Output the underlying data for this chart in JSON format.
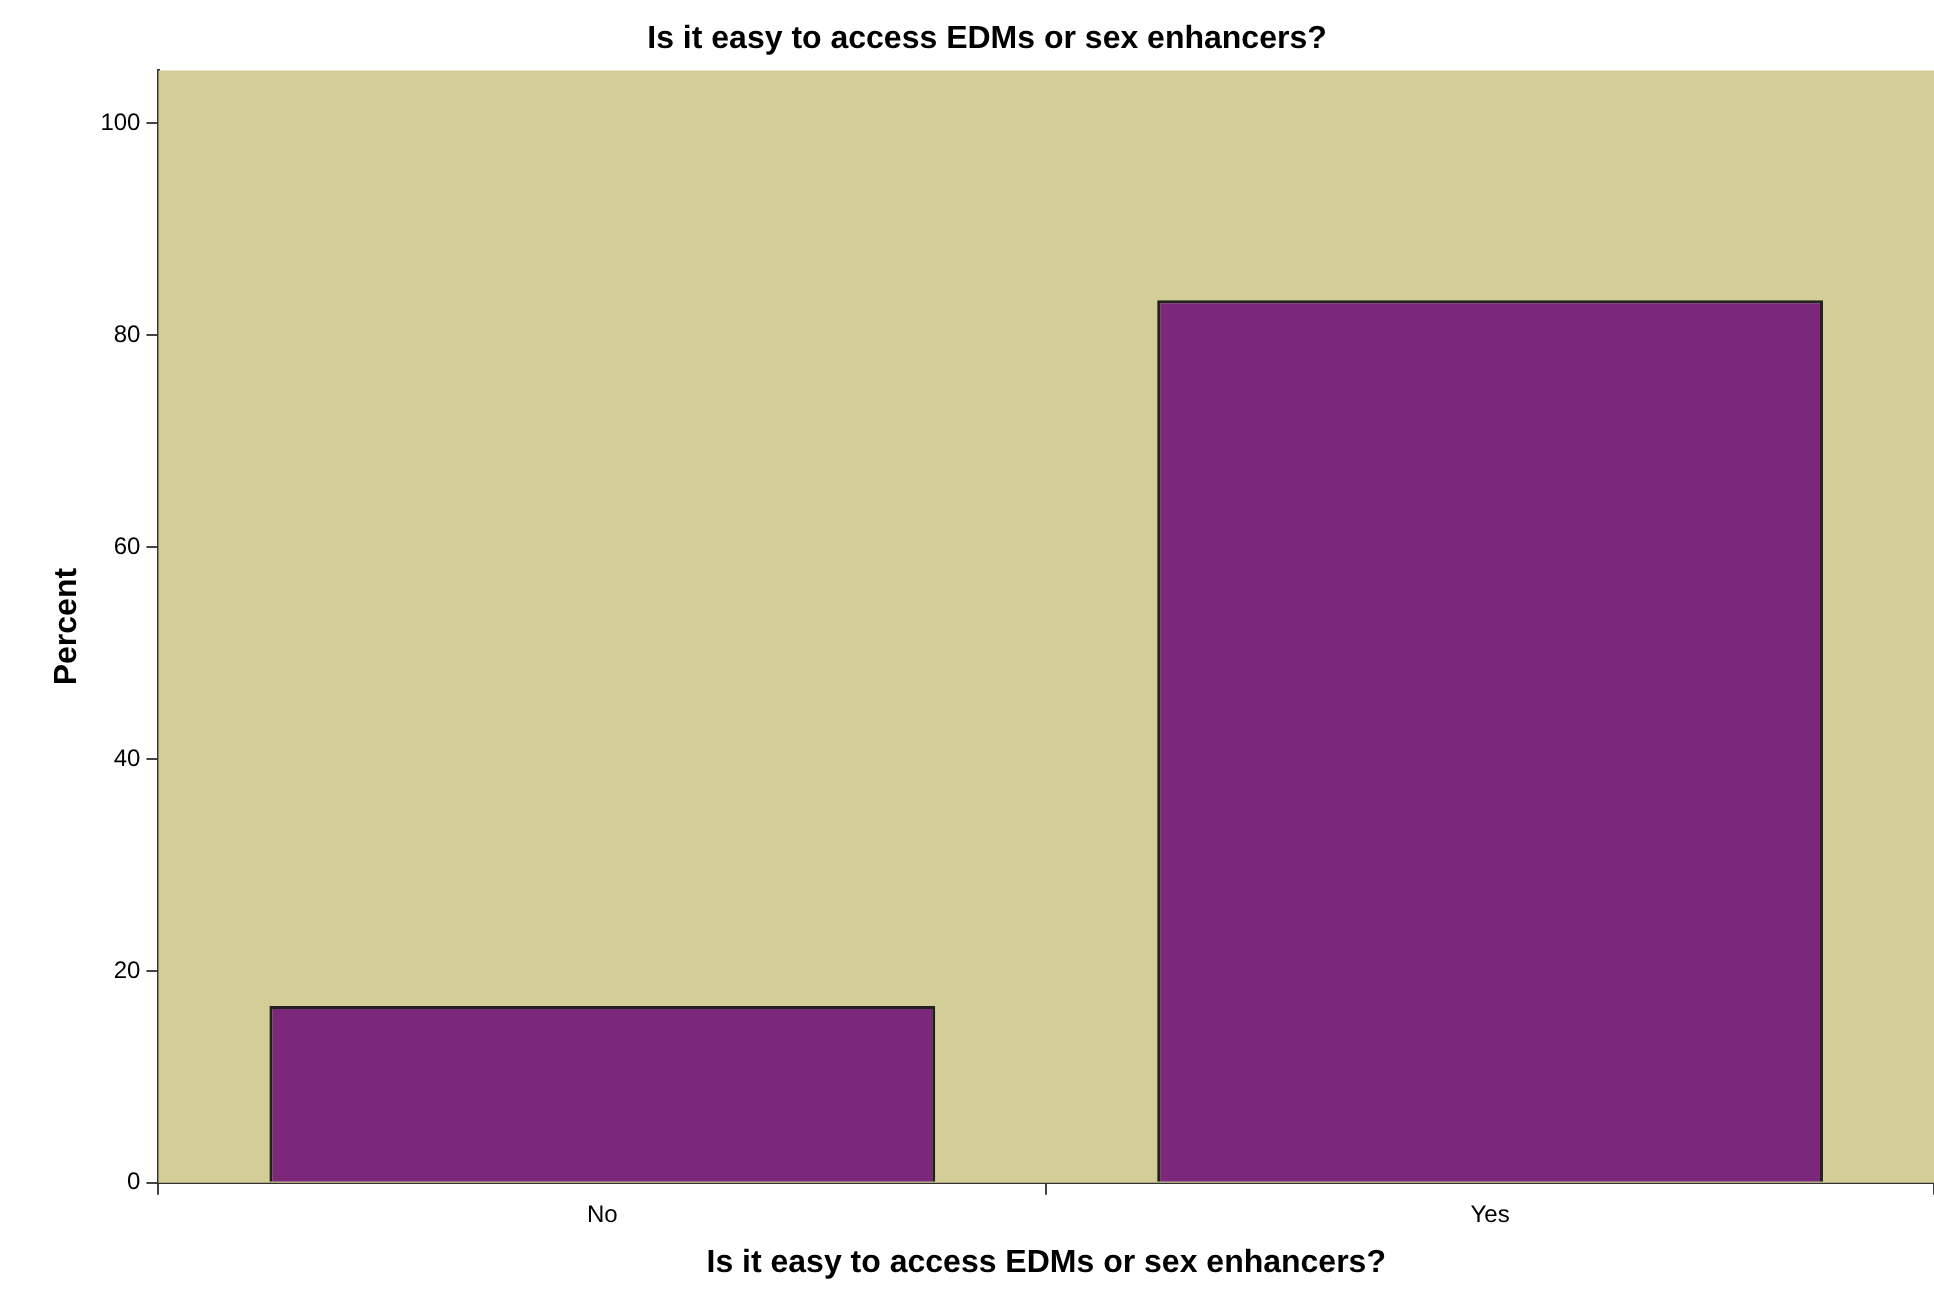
{
  "chart_data": {
    "type": "bar",
    "title": "Is it easy to access EDMs or sex enhancers?",
    "xlabel": "Is it easy to access EDMs or sex enhancers?",
    "ylabel": "Percent",
    "categories": [
      "No",
      "Yes"
    ],
    "values": [
      16.7,
      83.3
    ],
    "color": "#7b287b",
    "ylim": [
      0,
      105
    ],
    "yticks": [
      0,
      20,
      40,
      60,
      80,
      100
    ],
    "grid": false,
    "legend": false
  }
}
